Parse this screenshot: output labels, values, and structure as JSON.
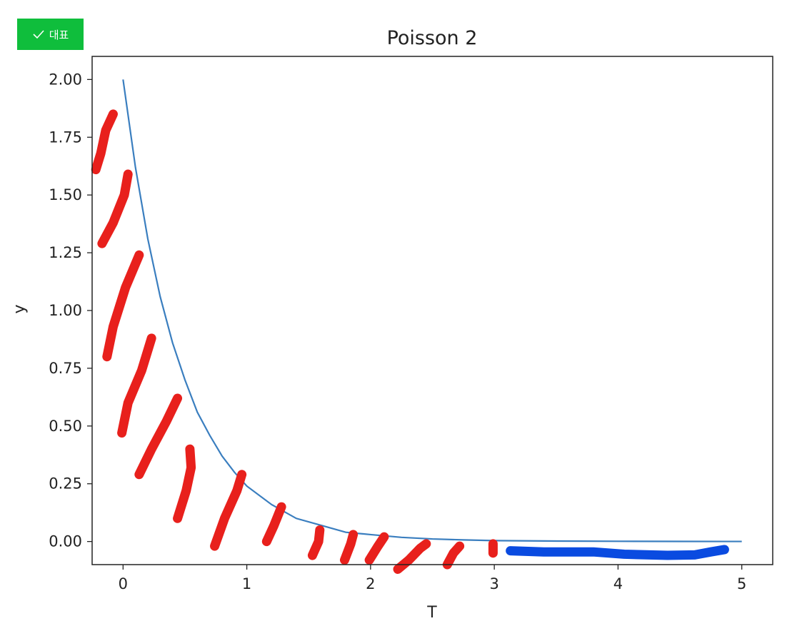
{
  "badge": {
    "label": "대표",
    "icon": "check-icon",
    "color": "#0fbe3c"
  },
  "chart_data": {
    "type": "line",
    "title": "Poisson 2",
    "xlabel": "T",
    "ylabel": "y",
    "xlim": [
      -0.25,
      5.25
    ],
    "ylim": [
      -0.1,
      2.1
    ],
    "xticks": [
      0,
      1,
      2,
      3,
      4,
      5
    ],
    "yticks": [
      0.0,
      0.25,
      0.5,
      0.75,
      1.0,
      1.25,
      1.5,
      1.75,
      2.0
    ],
    "xtick_labels": [
      "0",
      "1",
      "2",
      "3",
      "4",
      "5"
    ],
    "ytick_labels": [
      "0.00",
      "0.25",
      "0.50",
      "0.75",
      "1.00",
      "1.25",
      "1.50",
      "1.75",
      "2.00"
    ],
    "grid": false,
    "series": [
      {
        "color": "#3a7ebf",
        "x": [
          0,
          0.1,
          0.2,
          0.3,
          0.4,
          0.5,
          0.6,
          0.7,
          0.8,
          0.9,
          1.0,
          1.2,
          1.4,
          1.6,
          1.8,
          2.0,
          2.25,
          2.5,
          2.75,
          3.0,
          3.5,
          4.0,
          4.5,
          5.0
        ],
        "y": [
          2.0,
          1.62,
          1.31,
          1.06,
          0.86,
          0.7,
          0.56,
          0.46,
          0.37,
          0.3,
          0.24,
          0.16,
          0.1,
          0.07,
          0.04,
          0.03,
          0.018,
          0.011,
          0.007,
          0.004,
          0.002,
          0.001,
          0.0005,
          0.0002
        ]
      }
    ],
    "annotations": {
      "red_color": "#e8201c",
      "blue_color": "#0a4be0",
      "red_strokes": [
        [
          [
            -0.22,
            1.61
          ],
          [
            -0.18,
            1.68
          ],
          [
            -0.14,
            1.78
          ],
          [
            -0.08,
            1.85
          ]
        ],
        [
          [
            -0.17,
            1.29
          ],
          [
            -0.08,
            1.38
          ],
          [
            0.01,
            1.5
          ],
          [
            0.04,
            1.59
          ]
        ],
        [
          [
            -0.13,
            0.8
          ],
          [
            -0.08,
            0.93
          ],
          [
            0.02,
            1.1
          ],
          [
            0.13,
            1.24
          ]
        ],
        [
          [
            -0.01,
            0.47
          ],
          [
            0.04,
            0.6
          ],
          [
            0.15,
            0.74
          ],
          [
            0.23,
            0.88
          ]
        ],
        [
          [
            0.13,
            0.29
          ],
          [
            0.23,
            0.4
          ],
          [
            0.35,
            0.52
          ],
          [
            0.44,
            0.62
          ]
        ],
        [
          [
            0.44,
            0.1
          ],
          [
            0.51,
            0.22
          ],
          [
            0.55,
            0.32
          ],
          [
            0.54,
            0.4
          ]
        ],
        [
          [
            0.74,
            -0.02
          ],
          [
            0.82,
            0.1
          ],
          [
            0.92,
            0.22
          ],
          [
            0.96,
            0.29
          ]
        ],
        [
          [
            1.16,
            0.0
          ],
          [
            1.22,
            0.07
          ],
          [
            1.28,
            0.15
          ]
        ],
        [
          [
            1.53,
            -0.06
          ],
          [
            1.58,
            0.0
          ],
          [
            1.59,
            0.05
          ]
        ],
        [
          [
            1.79,
            -0.08
          ],
          [
            1.84,
            -0.01
          ],
          [
            1.86,
            0.03
          ]
        ],
        [
          [
            1.99,
            -0.08
          ],
          [
            2.06,
            -0.02
          ],
          [
            2.11,
            0.02
          ]
        ],
        [
          [
            2.22,
            -0.12
          ],
          [
            2.31,
            -0.08
          ],
          [
            2.4,
            -0.03
          ],
          [
            2.45,
            -0.01
          ]
        ],
        [
          [
            2.62,
            -0.1
          ],
          [
            2.67,
            -0.05
          ],
          [
            2.72,
            -0.02
          ]
        ],
        [
          [
            2.99,
            -0.05
          ],
          [
            2.99,
            -0.01
          ]
        ]
      ],
      "blue_strokes": [
        [
          [
            3.13,
            -0.04
          ],
          [
            3.4,
            -0.045
          ],
          [
            3.8,
            -0.045
          ],
          [
            4.05,
            -0.055
          ],
          [
            4.4,
            -0.06
          ],
          [
            4.62,
            -0.058
          ],
          [
            4.75,
            -0.045
          ],
          [
            4.86,
            -0.035
          ]
        ]
      ]
    }
  }
}
